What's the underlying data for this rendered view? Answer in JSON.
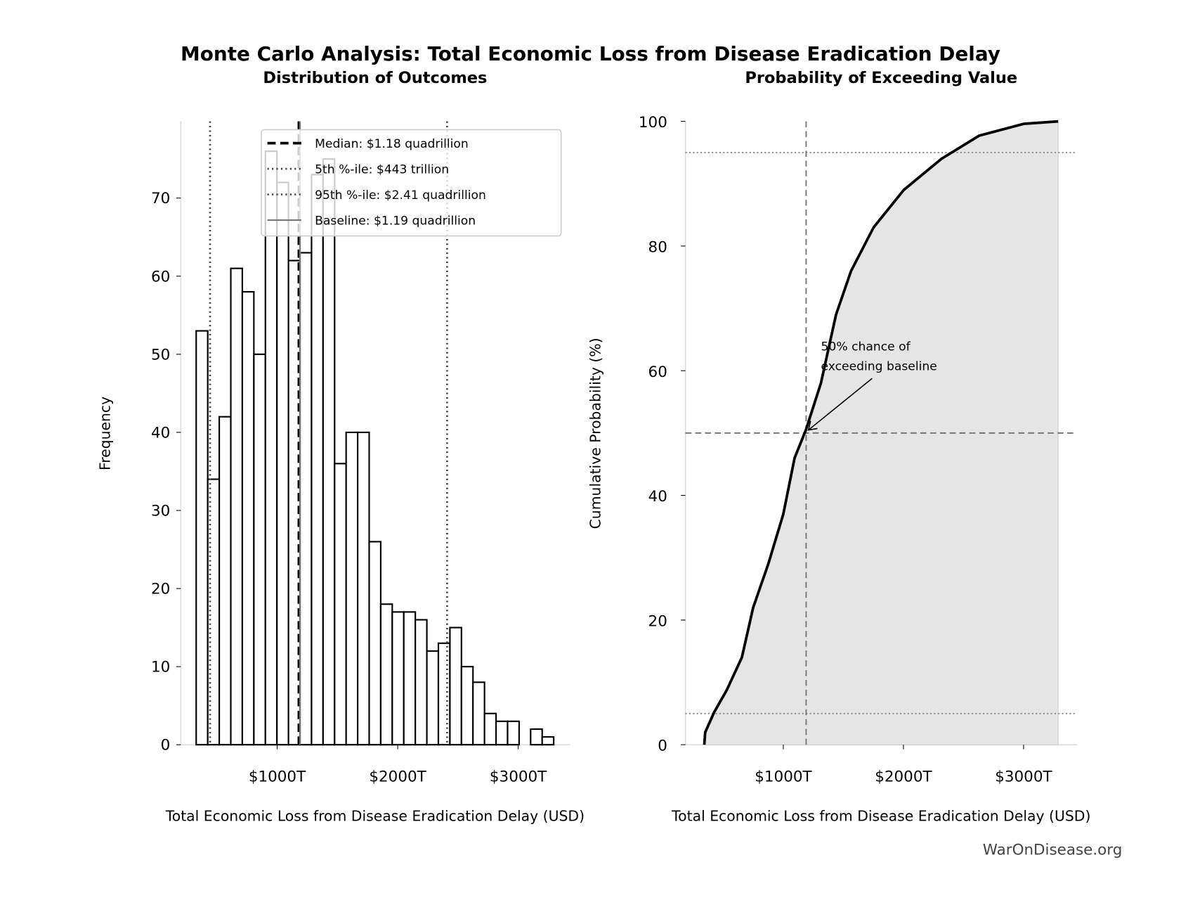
{
  "title": "Monte Carlo Analysis: Total Economic Loss from Disease Eradication Delay",
  "watermark": "WarOnDisease.org",
  "chart_data": [
    {
      "type": "bar",
      "subtype": "histogram",
      "title": "Distribution of Outcomes",
      "xlabel": "Total Economic Loss from Disease Eradication Delay (USD)",
      "ylabel": "Frequency",
      "x_unit": "trillion USD",
      "bin_start": 328,
      "bin_width": 95.7,
      "values": [
        53,
        34,
        42,
        61,
        58,
        50,
        76,
        72,
        62,
        63,
        73,
        75,
        36,
        40,
        40,
        26,
        18,
        17,
        17,
        16,
        12,
        13,
        15,
        10,
        8,
        4,
        3,
        3,
        0,
        2,
        1
      ],
      "xlim": [
        -50,
        3500
      ],
      "ylim": [
        0,
        80
      ],
      "xticks": [
        {
          "value": 1000,
          "label": "$1000T"
        },
        {
          "value": 2000,
          "label": "$2000T"
        },
        {
          "value": 3000,
          "label": "$3000T"
        }
      ],
      "yticks": [
        {
          "value": 0,
          "label": "0"
        },
        {
          "value": 10,
          "label": "10"
        },
        {
          "value": 20,
          "label": "20"
        },
        {
          "value": 30,
          "label": "30"
        },
        {
          "value": 40,
          "label": "40"
        },
        {
          "value": 50,
          "label": "50"
        },
        {
          "value": 60,
          "label": "60"
        },
        {
          "value": 70,
          "label": "70"
        }
      ],
      "reference_lines": [
        {
          "name": "Median: $1.18 quadrillion",
          "value": 1180,
          "style": "dashed",
          "color": "#000000"
        },
        {
          "name": "5th %-ile: $443 trillion",
          "value": 443,
          "style": "dotted",
          "color": "#444444"
        },
        {
          "name": "95th %-ile: $2.41 quadrillion",
          "value": 2410,
          "style": "dotted",
          "color": "#444444"
        },
        {
          "name": "Baseline: $1.19 quadrillion",
          "value": 1190,
          "style": "solid",
          "color": "#777777"
        }
      ],
      "legend": "top-right",
      "grid": false
    },
    {
      "type": "area",
      "title": "Probability of Exceeding Value",
      "xlabel": "Total Economic Loss from Disease Eradication Delay (USD)",
      "ylabel": "Cumulative Probability (%)",
      "x_unit": "trillion USD",
      "x": [
        342,
        350,
        424,
        530,
        655,
        749,
        875,
        1000,
        1094,
        1188,
        1313,
        1439,
        1564,
        1752,
        2003,
        2317,
        2630,
        3000,
        3288
      ],
      "y": [
        0,
        2,
        5.2,
        8.8,
        14,
        22,
        29,
        37,
        46,
        50.5,
        58,
        69,
        76,
        83,
        89,
        94,
        97.7,
        99.6,
        100
      ],
      "xlim": [
        -50,
        3500
      ],
      "ylim": [
        0,
        100
      ],
      "xticks": [
        {
          "value": 1000,
          "label": "$1000T"
        },
        {
          "value": 2000,
          "label": "$2000T"
        },
        {
          "value": 3000,
          "label": "$3000T"
        }
      ],
      "yticks": [
        {
          "value": 0,
          "label": "0"
        },
        {
          "value": 20,
          "label": "20"
        },
        {
          "value": 40,
          "label": "40"
        },
        {
          "value": 60,
          "label": "60"
        },
        {
          "value": 80,
          "label": "80"
        },
        {
          "value": 100,
          "label": "100"
        }
      ],
      "hlines": [
        {
          "value": 95,
          "style": "dotted"
        },
        {
          "value": 5,
          "style": "dotted"
        },
        {
          "value": 50,
          "style": "dashed"
        }
      ],
      "vline": {
        "value": 1190,
        "style": "dashed"
      },
      "annotation": {
        "line1": "50% chance of",
        "line2": "exceeding baseline",
        "x": 1190,
        "y": 50
      },
      "fill_color": "#e5e5e5",
      "line_color": "#000000",
      "grid": false
    }
  ]
}
